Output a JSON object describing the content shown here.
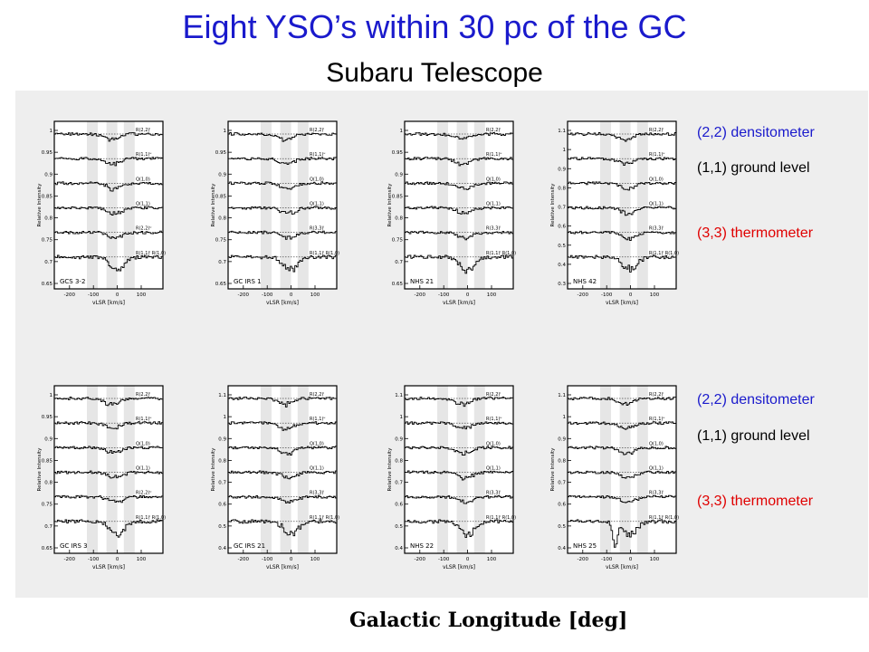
{
  "title": "Eight YSO’s within 30 pc of the GC",
  "subtitle": "Subaru Telescope",
  "side_labels": {
    "top": {
      "densitometer": "(2,2) densitometer",
      "ground": "(1,1) ground level",
      "thermometer": "(3,3) thermometer"
    },
    "bottom": {
      "densitometer": "(2,2) densitometer",
      "ground": "(1,1) ground level",
      "thermometer": "(3,3) thermometer"
    }
  },
  "colors": {
    "title": "#1a1acc",
    "densitometer": "#1a1acc",
    "ground": "#000000",
    "thermometer": "#e00000"
  },
  "bottom_axis_label": "Galactic Longitude [deg]",
  "panels": [
    {
      "name": "GCS 3-2",
      "ylabel": "Relative Intensity",
      "xlabel": "vLSR [km/s]",
      "xticks": [
        "-200",
        "-100",
        "0",
        "100"
      ],
      "yticks": [
        "1",
        "0.95",
        "0.9",
        "0.85",
        "0.8",
        "0.75",
        "0.7",
        "0.65"
      ],
      "lines": [
        "R(2,2)ˡ",
        "R(1,1)ᵘ",
        "Q(1,0)",
        "Q(1,1)",
        "R(2,2)ᵘ",
        "R(1,1)ˡ R(1,0)"
      ]
    },
    {
      "name": "GC IRS 1",
      "ylabel": "Relative Intensity",
      "xlabel": "vLSR [km/s]",
      "xticks": [
        "-200",
        "-100",
        "0",
        "100"
      ],
      "yticks": [
        "1",
        "0.95",
        "0.9",
        "0.85",
        "0.8",
        "0.75",
        "0.7",
        "0.65"
      ],
      "lines": [
        "R(2,2)ˡ",
        "R(1,1)ᵘ",
        "Q(1,0)",
        "Q(1,1)",
        "R(3,3)ˡ",
        "R(1,1)ˡ R(1,0)"
      ]
    },
    {
      "name": "NHS 21",
      "ylabel": "Relative Intensity",
      "xlabel": "vLSR [km/s]",
      "xticks": [
        "-200",
        "-100",
        "0",
        "100"
      ],
      "yticks": [
        "1",
        "0.95",
        "0.9",
        "0.85",
        "0.8",
        "0.75",
        "0.7",
        "0.65"
      ],
      "lines": [
        "R(2,2)ˡ",
        "R(1,1)ᵘ",
        "Q(1,0)",
        "Q(1,1)",
        "R(3,3)ˡ",
        "R(1,1)ˡ R(1,0)"
      ]
    },
    {
      "name": "NHS 42",
      "ylabel": "Relative Intensity",
      "xlabel": "vLSR [km/s]",
      "xticks": [
        "-200",
        "-100",
        "0",
        "100"
      ],
      "yticks": [
        "1.1",
        "1",
        "0.9",
        "0.8",
        "0.7",
        "0.6",
        "0.5",
        "0.4",
        "0.3"
      ],
      "lines": [
        "R(2,2)ˡ",
        "R(1,1)ᵘ",
        "Q(1,0)",
        "Q(1,1)",
        "R(3,3)ˡ",
        "R(1,1)ˡ R(1,0)"
      ]
    },
    {
      "name": "GC IRS 3",
      "ylabel": "Relative Intensity",
      "xlabel": "vLSR [km/s]",
      "xticks": [
        "-200",
        "-100",
        "0",
        "100"
      ],
      "yticks": [
        "1",
        "0.95",
        "0.9",
        "0.85",
        "0.8",
        "0.75",
        "0.7",
        "0.65"
      ],
      "lines": [
        "R(2,2)ˡ",
        "R(1,1)ᵘ",
        "Q(1,0)",
        "Q(1,1)",
        "R(2,2)ᵘ",
        "R(1,1)ˡ R(1,0)"
      ]
    },
    {
      "name": "GC IRS 21",
      "ylabel": "Relative Intensity",
      "xlabel": "vLSR [km/s]",
      "xticks": [
        "-200",
        "-100",
        "0",
        "100"
      ],
      "yticks": [
        "1.1",
        "1",
        "0.9",
        "0.8",
        "0.7",
        "0.6",
        "0.5",
        "0.4"
      ],
      "lines": [
        "R(2,2)ˡ",
        "R(1,1)ᵘ",
        "Q(1,0)",
        "Q(1,1)",
        "R(3,3)ˡ",
        "R(1,1)ˡ R(1,0)"
      ]
    },
    {
      "name": "NHS 22",
      "ylabel": "Relative Intensity",
      "xlabel": "vLSR [km/s]",
      "xticks": [
        "-200",
        "-100",
        "0",
        "100"
      ],
      "yticks": [
        "1.1",
        "1",
        "0.9",
        "0.8",
        "0.7",
        "0.6",
        "0.5",
        "0.4"
      ],
      "lines": [
        "R(2,2)ˡ",
        "R(1,1)ᵘ",
        "Q(1,0)",
        "Q(1,1)",
        "R(3,3)ˡ",
        "R(1,1)ˡ R(1,0)"
      ]
    },
    {
      "name": "NHS 25",
      "ylabel": "Relative Intensity",
      "xlabel": "vLSR [km/s]",
      "xticks": [
        "-200",
        "-100",
        "0",
        "100"
      ],
      "yticks": [
        "1.1",
        "1",
        "0.9",
        "0.8",
        "0.7",
        "0.6",
        "0.5",
        "0.4"
      ],
      "lines": [
        "R(2,2)ˡ",
        "R(1,1)ᵘ",
        "Q(1,0)",
        "Q(1,1)",
        "R(3,3)ˡ",
        "R(1,1)ˡ R(1,0)"
      ]
    }
  ]
}
